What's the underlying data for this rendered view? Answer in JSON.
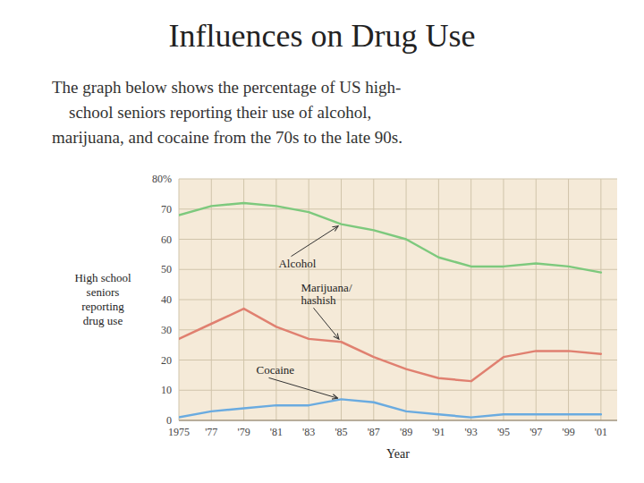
{
  "chart_data": {
    "type": "line",
    "title": "Influences on Drug Use",
    "subtitle": [
      "The graph below shows the percentage of US high-",
      "    school seniors reporting their use of alcohol,",
      "marijuana, and cocaine from the 70s to the late 90s."
    ],
    "xlabel": "Year",
    "ylabel": "High school\nseniors\nreporting\ndrug use",
    "x": [
      1975,
      1977,
      1979,
      1981,
      1983,
      1985,
      1987,
      1989,
      1991,
      1993,
      1995,
      1997,
      1999,
      2001
    ],
    "xlim": [
      1975,
      2002
    ],
    "xticks": [
      1975,
      {
        "value": 1977,
        "label": "'77"
      },
      {
        "value": 1979,
        "label": "'79"
      },
      {
        "value": 1981,
        "label": "'81"
      },
      {
        "value": 1983,
        "label": "'83"
      },
      {
        "value": 1985,
        "label": "'85"
      },
      {
        "value": 1987,
        "label": "'87"
      },
      {
        "value": 1989,
        "label": "'89"
      },
      {
        "value": 1991,
        "label": "'91"
      },
      {
        "value": 1993,
        "label": "'93"
      },
      {
        "value": 1995,
        "label": "'95"
      },
      {
        "value": 1997,
        "label": "'97"
      },
      {
        "value": 1999,
        "label": "'99"
      },
      {
        "value": 2001,
        "label": "'01"
      }
    ],
    "ylim": [
      0,
      80
    ],
    "yticks": [
      0,
      10,
      20,
      30,
      40,
      50,
      60,
      70,
      {
        "value": 80,
        "label": "80%"
      }
    ],
    "grid": true,
    "series": [
      {
        "name": "Alcohol",
        "color": "#7dc97d",
        "values": [
          68,
          71,
          72,
          71,
          69,
          65,
          63,
          60,
          54,
          51,
          51,
          52,
          51,
          49
        ]
      },
      {
        "name": "Marijuana/\nhashish",
        "color": "#e08070",
        "values": [
          27,
          32,
          37,
          31,
          27,
          26,
          21,
          17,
          14,
          13,
          21,
          23,
          23,
          22
        ]
      },
      {
        "name": "Cocaine",
        "color": "#6aabe0",
        "values": [
          1,
          3,
          4,
          5,
          5,
          7,
          6,
          3,
          2,
          1,
          2,
          2,
          2,
          2
        ]
      }
    ]
  }
}
